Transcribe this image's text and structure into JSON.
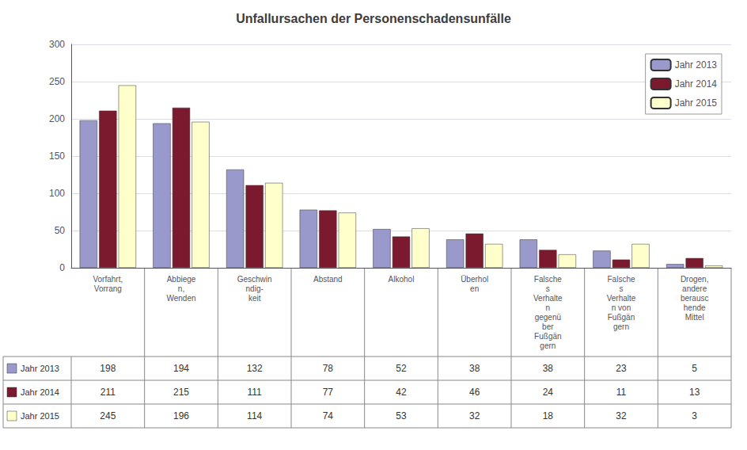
{
  "chart_data": {
    "type": "bar",
    "title": "Unfallursachen der Personenschadensunfälle",
    "categories": [
      "Vorfahrt,\nVorrang",
      "Abbiege\nn,\nWenden",
      "Geschwin\nndig-\nkeit",
      "Abstand",
      "Alkohol",
      "Überhol\nen",
      "Falsche\ns\nVerhalte\nn\ngegenü\nber\nFußgän\ngern",
      "Falsche\ns\nVerhalte\nn von\nFußgän\ngern",
      "Drogen,\nandere\nberausc\nhende\nMittel"
    ],
    "series": [
      {
        "name": "Jahr 2013",
        "color": "#9999CC",
        "values": [
          198,
          194,
          132,
          78,
          52,
          38,
          38,
          23,
          5
        ]
      },
      {
        "name": "Jahr 2014",
        "color": "#7B1A2E",
        "values": [
          211,
          215,
          111,
          77,
          42,
          46,
          24,
          11,
          13
        ]
      },
      {
        "name": "Jahr 2015",
        "color": "#FFFFCC",
        "values": [
          245,
          196,
          114,
          74,
          53,
          32,
          18,
          32,
          3
        ]
      }
    ],
    "ylim": [
      0,
      300
    ],
    "yticks": [
      0,
      50,
      100,
      150,
      200,
      250,
      300
    ],
    "grid": true,
    "legend": "upper right"
  }
}
